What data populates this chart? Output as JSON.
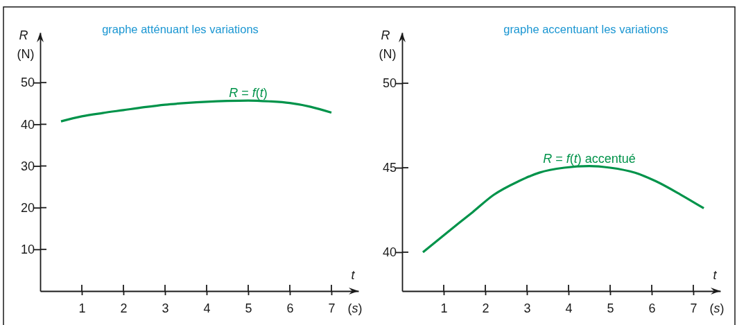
{
  "chart_data": [
    {
      "type": "line",
      "title": "graphe atténuant les variations",
      "xlabel": "t (s)",
      "ylabel": "R (N)",
      "x": [
        0.5,
        1,
        1.5,
        2,
        2.5,
        3,
        3.5,
        4,
        4.5,
        5,
        5.5,
        6,
        6.5,
        7
      ],
      "series": [
        {
          "name": "R = f(t)",
          "color": "#00934a",
          "values": [
            40.7,
            41.9,
            42.7,
            43.4,
            44.1,
            44.7,
            45.1,
            45.4,
            45.6,
            45.7,
            45.5,
            45.1,
            44.2,
            42.8
          ]
        }
      ],
      "xlim": [
        0,
        7.65
      ],
      "ylim": [
        0,
        62
      ],
      "xticks": [
        1,
        2,
        3,
        4,
        5,
        6,
        7
      ],
      "yticks": [
        10,
        20,
        30,
        40,
        50
      ]
    },
    {
      "type": "line",
      "title": "graphe accentuant les variations",
      "xlabel": "t (s)",
      "ylabel": "R (N)",
      "x": [
        0.5,
        1.1,
        1.7,
        2.2,
        2.8,
        3.3,
        3.9,
        4.5,
        5,
        5.6,
        6.1,
        6.7,
        7.25
      ],
      "series": [
        {
          "name": "R = f(t) accentué",
          "color": "#00934a",
          "values": [
            40,
            41.2,
            42.38,
            43.39,
            44.2,
            44.71,
            45,
            45.1,
            45,
            44.7,
            44.2,
            43.4,
            42.6
          ]
        }
      ],
      "xlim": [
        0,
        7.65
      ],
      "ylim": [
        37.7,
        53
      ],
      "xticks": [
        1,
        2,
        3,
        4,
        5,
        6,
        7
      ],
      "yticks": [
        40,
        45,
        50
      ]
    }
  ]
}
